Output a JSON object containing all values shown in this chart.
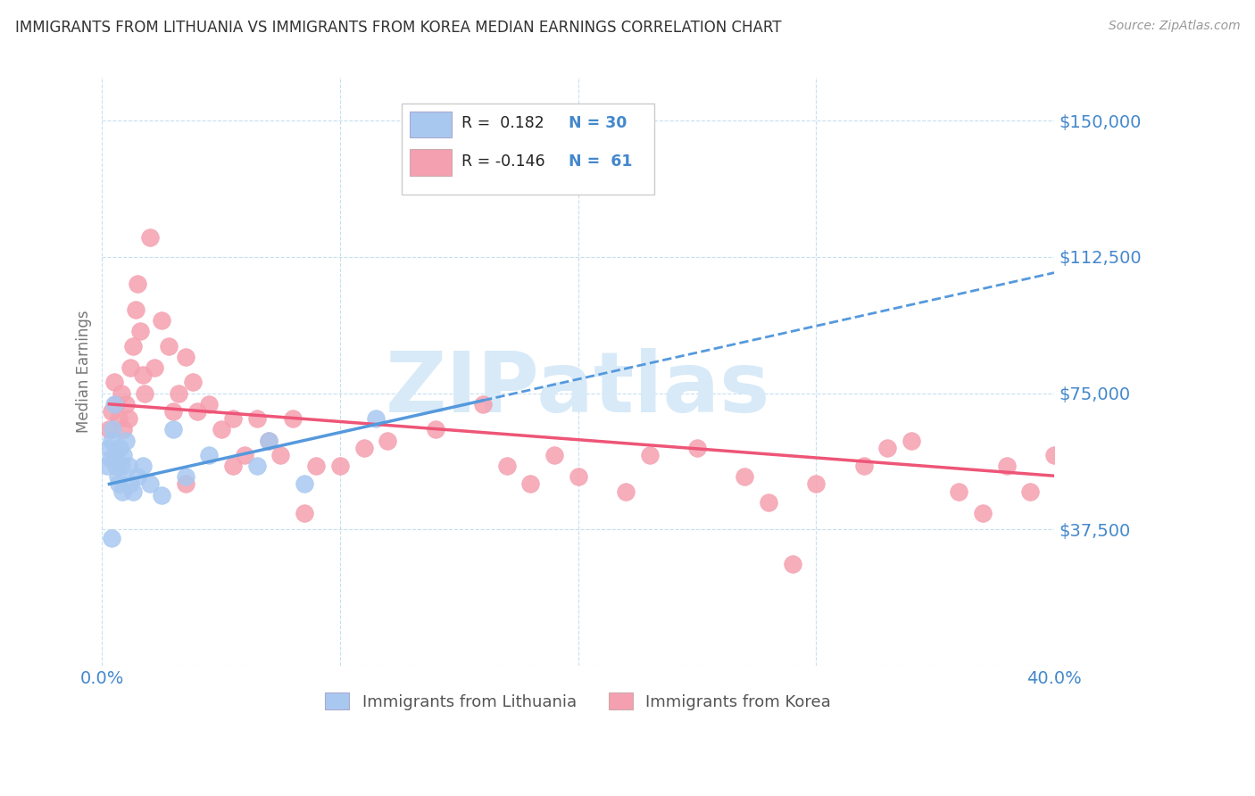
{
  "title": "IMMIGRANTS FROM LITHUANIA VS IMMIGRANTS FROM KOREA MEDIAN EARNINGS CORRELATION CHART",
  "source": "Source: ZipAtlas.com",
  "ylabel": "Median Earnings",
  "yticks": [
    0,
    37500,
    75000,
    112500,
    150000
  ],
  "ytick_labels": [
    "",
    "$37,500",
    "$75,000",
    "$112,500",
    "$150,000"
  ],
  "xlim": [
    0.0,
    40.0
  ],
  "ylim": [
    0,
    162000
  ],
  "legend_r1": "R =  0.182",
  "legend_n1": "N = 30",
  "legend_r2": "R = -0.146",
  "legend_n2": "N =  61",
  "color_lithuania": "#a8c8f0",
  "color_korea": "#f5a0b0",
  "color_trend_lithuania": "#5599dd",
  "color_trend_korea": "#ee5577",
  "color_axis_labels": "#4488cc",
  "color_title": "#333333",
  "watermark_text": "ZIPatlas",
  "watermark_color": "#d8eaf8",
  "background_color": "#ffffff",
  "lit_trend_x0": 0.3,
  "lit_trend_x1": 16.0,
  "lit_trend_y0": 50000,
  "lit_trend_y1": 73000,
  "kor_trend_x0": 0.3,
  "kor_trend_x1": 40.5,
  "kor_trend_y0": 72000,
  "kor_trend_y1": 52000,
  "lithuania_x": [
    0.2,
    0.3,
    0.35,
    0.4,
    0.45,
    0.5,
    0.55,
    0.6,
    0.65,
    0.7,
    0.75,
    0.8,
    0.85,
    0.9,
    1.0,
    1.1,
    1.2,
    1.3,
    1.5,
    1.7,
    2.0,
    2.5,
    3.0,
    3.5,
    4.5,
    6.5,
    7.0,
    8.5,
    11.5,
    0.4
  ],
  "lithuania_y": [
    55000,
    60000,
    57000,
    62000,
    65000,
    72000,
    58000,
    55000,
    52000,
    50000,
    60000,
    55000,
    48000,
    58000,
    62000,
    55000,
    50000,
    48000,
    52000,
    55000,
    50000,
    47000,
    65000,
    52000,
    58000,
    55000,
    62000,
    50000,
    68000,
    35000
  ],
  "korea_x": [
    0.3,
    0.4,
    0.5,
    0.6,
    0.7,
    0.8,
    0.9,
    1.0,
    1.1,
    1.2,
    1.3,
    1.4,
    1.5,
    1.6,
    1.7,
    1.8,
    2.0,
    2.2,
    2.5,
    2.8,
    3.0,
    3.2,
    3.5,
    3.8,
    4.0,
    4.5,
    5.0,
    5.5,
    6.0,
    6.5,
    7.0,
    7.5,
    8.0,
    9.0,
    10.0,
    11.0,
    12.0,
    14.0,
    16.0,
    17.0,
    18.0,
    19.0,
    20.0,
    22.0,
    23.0,
    25.0,
    27.0,
    28.0,
    30.0,
    32.0,
    33.0,
    34.0,
    36.0,
    37.0,
    38.0,
    39.0,
    40.0,
    3.5,
    5.5,
    8.5,
    29.0
  ],
  "korea_y": [
    65000,
    70000,
    78000,
    72000,
    68000,
    75000,
    65000,
    72000,
    68000,
    82000,
    88000,
    98000,
    105000,
    92000,
    80000,
    75000,
    118000,
    82000,
    95000,
    88000,
    70000,
    75000,
    85000,
    78000,
    70000,
    72000,
    65000,
    68000,
    58000,
    68000,
    62000,
    58000,
    68000,
    55000,
    55000,
    60000,
    62000,
    65000,
    72000,
    55000,
    50000,
    58000,
    52000,
    48000,
    58000,
    60000,
    52000,
    45000,
    50000,
    55000,
    60000,
    62000,
    48000,
    42000,
    55000,
    48000,
    58000,
    50000,
    55000,
    42000,
    28000
  ]
}
